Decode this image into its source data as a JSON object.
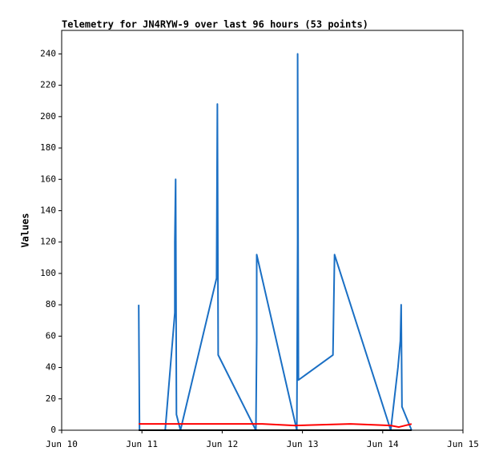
{
  "chart_data": {
    "type": "line",
    "title": "Telemetry for JN4RYW-9 over last 96 hours (53 points)",
    "y_label": "Values",
    "xlim": [
      10,
      15
    ],
    "xticks": [
      {
        "value": 10,
        "label": "Jun 10"
      },
      {
        "value": 11,
        "label": "Jun 11"
      },
      {
        "value": 12,
        "label": "Jun 12"
      },
      {
        "value": 13,
        "label": "Jun 13"
      },
      {
        "value": 14,
        "label": "Jun 14"
      },
      {
        "value": 15,
        "label": "Jun 15"
      }
    ],
    "ylim": [
      0,
      255
    ],
    "yticks": [
      0,
      20,
      40,
      60,
      80,
      100,
      120,
      140,
      160,
      180,
      200,
      220,
      240
    ],
    "grid": false,
    "series": [
      {
        "color": "#000000",
        "x": [
          10.96,
          14.36
        ],
        "values": [
          0,
          0
        ]
      },
      {
        "color": "#ff0000",
        "x": [
          10.96,
          12.5,
          12.9,
          13.6,
          14.1,
          14.2,
          14.36
        ],
        "values": [
          4,
          4,
          3,
          4,
          3,
          2,
          4
        ]
      },
      {
        "color": "#1a6fc4",
        "x": [
          10.96,
          10.97,
          11.29,
          11.41,
          11.41,
          11.42,
          11.43,
          11.48,
          11.93,
          11.94,
          11.95,
          12.42,
          12.43,
          12.43,
          12.93,
          12.94,
          12.94,
          12.95,
          13.38,
          13.4,
          14.1,
          14.19,
          14.22,
          14.23,
          14.24,
          14.36
        ],
        "values": [
          80,
          0,
          0,
          75,
          120,
          160,
          10,
          0,
          97,
          208,
          48,
          0,
          57,
          112,
          0,
          120,
          240,
          32,
          48,
          112,
          0,
          40,
          57,
          80,
          15,
          0
        ]
      }
    ]
  }
}
